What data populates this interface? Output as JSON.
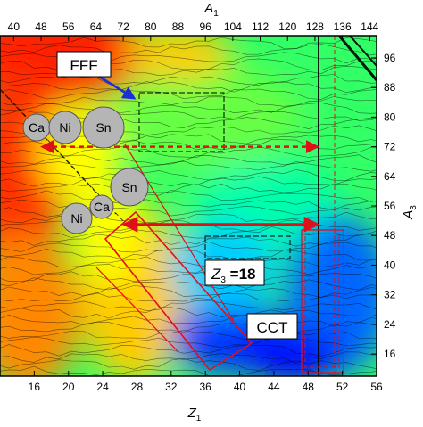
{
  "chart_data": {
    "type": "heatmap",
    "title": "",
    "x_bottom": {
      "label_main": "Z",
      "label_sub": "1",
      "range": [
        12,
        56
      ],
      "ticks": [
        "16",
        "20",
        "24",
        "28",
        "32",
        "36",
        "40",
        "44",
        "48",
        "52",
        "56"
      ],
      "tick_values": [
        16,
        20,
        24,
        28,
        32,
        36,
        40,
        44,
        48,
        52,
        56
      ]
    },
    "x_top": {
      "label_main": "A",
      "label_sub": "1",
      "range": [
        36,
        146
      ],
      "ticks": [
        "40",
        "48",
        "56",
        "64",
        "72",
        "80",
        "88",
        "96",
        "104",
        "112",
        "120",
        "128",
        "136",
        "144"
      ],
      "tick_values": [
        40,
        48,
        56,
        64,
        72,
        80,
        88,
        96,
        104,
        112,
        120,
        128,
        136,
        144
      ]
    },
    "y_right": {
      "label_main": "A",
      "label_sub": "3",
      "range": [
        10,
        102
      ],
      "ticks": [
        "16",
        "24",
        "32",
        "40",
        "48",
        "56",
        "64",
        "72",
        "80",
        "88",
        "96"
      ],
      "tick_values": [
        16,
        24,
        32,
        40,
        48,
        56,
        64,
        72,
        80,
        88,
        96
      ]
    },
    "colormap": [
      "#0000ff",
      "#0066ff",
      "#00ccff",
      "#00ffcc",
      "#33ff66",
      "#99ff00",
      "#ffff00",
      "#ffcc00",
      "#ff8800",
      "#ff3300",
      "#ff0000"
    ],
    "grid": false,
    "legend": "none",
    "annotations": {
      "fff_label": "FFF",
      "cct_label": "CCT",
      "z3_main": "Z",
      "z3_sub": "3",
      "z3_value": " =18",
      "balls_top": [
        "Ca",
        "Ni",
        "Sn"
      ],
      "balls_bottom": [
        "Ni",
        "Ca",
        "Sn"
      ],
      "dashed_arrow_a3": 72,
      "solid_arrow_a3": 51
    },
    "colors": {
      "red_marks": "#e0101a",
      "arrow_blue": "#1a2fd6",
      "ball_fill": "#b5b5b5"
    }
  }
}
